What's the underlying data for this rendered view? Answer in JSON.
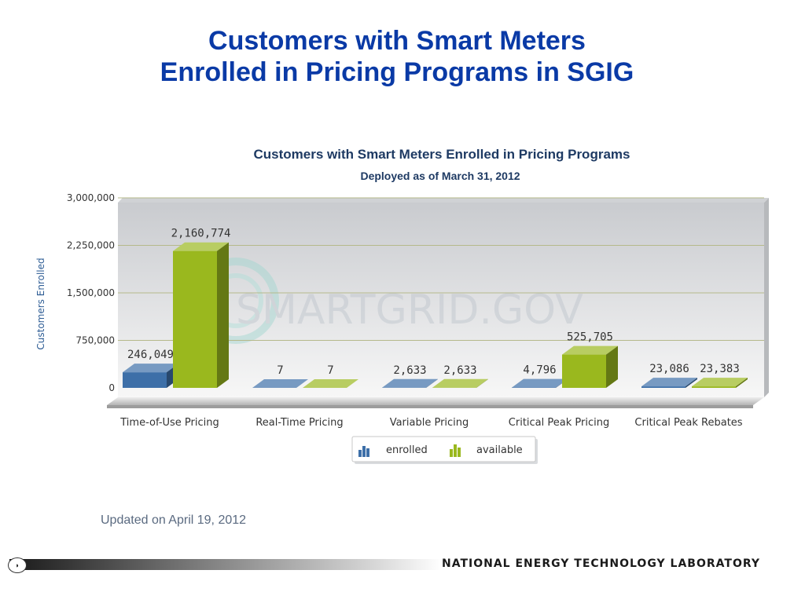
{
  "slide": {
    "title_line1": "Customers with Smart Meters",
    "title_line2": "Enrolled in Pricing Programs in SGIG",
    "updated": "Updated on April 19, 2012",
    "footer_org": "NATIONAL ENERGY TECHNOLOGY LABORATORY",
    "watermark": "SMARTGRID.GOV"
  },
  "chart_data": {
    "type": "bar",
    "title": "Customers with Smart Meters Enrolled in Pricing Programs",
    "subtitle": "Deployed as of March 31, 2012",
    "ylabel": "Customers Enrolled",
    "xlabel": "",
    "ylim": [
      0,
      3000000
    ],
    "yticks": [
      {
        "value": 0,
        "label": "0"
      },
      {
        "value": 750000,
        "label": "750,000"
      },
      {
        "value": 1500000,
        "label": "1,500,000"
      },
      {
        "value": 2250000,
        "label": "2,250,000"
      },
      {
        "value": 3000000,
        "label": "3,000,000"
      }
    ],
    "categories": [
      "Time-of-Use Pricing",
      "Real-Time Pricing",
      "Variable Pricing",
      "Critical Peak Pricing",
      "Critical Peak Rebates"
    ],
    "series": [
      {
        "name": "enrolled",
        "color": "#3d6fa8",
        "values": [
          246049,
          7,
          2633,
          4796,
          23086
        ],
        "labels": [
          "246,049",
          "7",
          "2,633",
          "4,796",
          "23,086"
        ]
      },
      {
        "name": "available",
        "color": "#9ab81e",
        "values": [
          2160774,
          7,
          2633,
          525705,
          23383
        ],
        "labels": [
          "2,160,774",
          "7",
          "2,633",
          "525,705",
          "23,383"
        ]
      }
    ],
    "grid": true,
    "legend_position": "bottom"
  }
}
